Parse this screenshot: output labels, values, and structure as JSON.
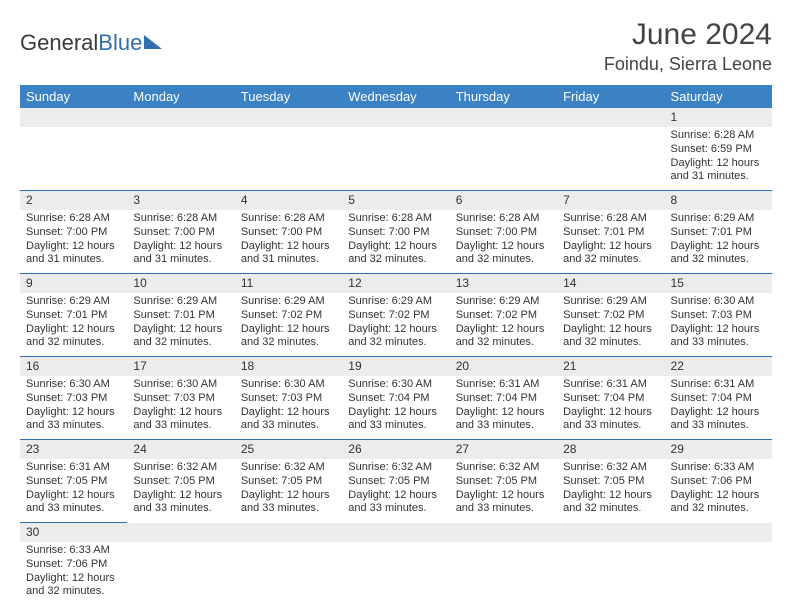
{
  "brand": {
    "part1": "General",
    "part2": "Blue"
  },
  "title": "June 2024",
  "location": "Foindu, Sierra Leone",
  "colors": {
    "header_bg": "#3b82c4",
    "header_text": "#ffffff",
    "daynum_bg": "#ececec",
    "cell_border": "#2f6fb0",
    "brand_blue": "#2f6fb0"
  },
  "weekdays": [
    "Sunday",
    "Monday",
    "Tuesday",
    "Wednesday",
    "Thursday",
    "Friday",
    "Saturday"
  ],
  "weeks": [
    [
      null,
      null,
      null,
      null,
      null,
      null,
      {
        "n": "1",
        "sr": "Sunrise: 6:28 AM",
        "ss": "Sunset: 6:59 PM",
        "d1": "Daylight: 12 hours",
        "d2": "and 31 minutes."
      }
    ],
    [
      {
        "n": "2",
        "sr": "Sunrise: 6:28 AM",
        "ss": "Sunset: 7:00 PM",
        "d1": "Daylight: 12 hours",
        "d2": "and 31 minutes."
      },
      {
        "n": "3",
        "sr": "Sunrise: 6:28 AM",
        "ss": "Sunset: 7:00 PM",
        "d1": "Daylight: 12 hours",
        "d2": "and 31 minutes."
      },
      {
        "n": "4",
        "sr": "Sunrise: 6:28 AM",
        "ss": "Sunset: 7:00 PM",
        "d1": "Daylight: 12 hours",
        "d2": "and 31 minutes."
      },
      {
        "n": "5",
        "sr": "Sunrise: 6:28 AM",
        "ss": "Sunset: 7:00 PM",
        "d1": "Daylight: 12 hours",
        "d2": "and 32 minutes."
      },
      {
        "n": "6",
        "sr": "Sunrise: 6:28 AM",
        "ss": "Sunset: 7:00 PM",
        "d1": "Daylight: 12 hours",
        "d2": "and 32 minutes."
      },
      {
        "n": "7",
        "sr": "Sunrise: 6:28 AM",
        "ss": "Sunset: 7:01 PM",
        "d1": "Daylight: 12 hours",
        "d2": "and 32 minutes."
      },
      {
        "n": "8",
        "sr": "Sunrise: 6:29 AM",
        "ss": "Sunset: 7:01 PM",
        "d1": "Daylight: 12 hours",
        "d2": "and 32 minutes."
      }
    ],
    [
      {
        "n": "9",
        "sr": "Sunrise: 6:29 AM",
        "ss": "Sunset: 7:01 PM",
        "d1": "Daylight: 12 hours",
        "d2": "and 32 minutes."
      },
      {
        "n": "10",
        "sr": "Sunrise: 6:29 AM",
        "ss": "Sunset: 7:01 PM",
        "d1": "Daylight: 12 hours",
        "d2": "and 32 minutes."
      },
      {
        "n": "11",
        "sr": "Sunrise: 6:29 AM",
        "ss": "Sunset: 7:02 PM",
        "d1": "Daylight: 12 hours",
        "d2": "and 32 minutes."
      },
      {
        "n": "12",
        "sr": "Sunrise: 6:29 AM",
        "ss": "Sunset: 7:02 PM",
        "d1": "Daylight: 12 hours",
        "d2": "and 32 minutes."
      },
      {
        "n": "13",
        "sr": "Sunrise: 6:29 AM",
        "ss": "Sunset: 7:02 PM",
        "d1": "Daylight: 12 hours",
        "d2": "and 32 minutes."
      },
      {
        "n": "14",
        "sr": "Sunrise: 6:29 AM",
        "ss": "Sunset: 7:02 PM",
        "d1": "Daylight: 12 hours",
        "d2": "and 32 minutes."
      },
      {
        "n": "15",
        "sr": "Sunrise: 6:30 AM",
        "ss": "Sunset: 7:03 PM",
        "d1": "Daylight: 12 hours",
        "d2": "and 33 minutes."
      }
    ],
    [
      {
        "n": "16",
        "sr": "Sunrise: 6:30 AM",
        "ss": "Sunset: 7:03 PM",
        "d1": "Daylight: 12 hours",
        "d2": "and 33 minutes."
      },
      {
        "n": "17",
        "sr": "Sunrise: 6:30 AM",
        "ss": "Sunset: 7:03 PM",
        "d1": "Daylight: 12 hours",
        "d2": "and 33 minutes."
      },
      {
        "n": "18",
        "sr": "Sunrise: 6:30 AM",
        "ss": "Sunset: 7:03 PM",
        "d1": "Daylight: 12 hours",
        "d2": "and 33 minutes."
      },
      {
        "n": "19",
        "sr": "Sunrise: 6:30 AM",
        "ss": "Sunset: 7:04 PM",
        "d1": "Daylight: 12 hours",
        "d2": "and 33 minutes."
      },
      {
        "n": "20",
        "sr": "Sunrise: 6:31 AM",
        "ss": "Sunset: 7:04 PM",
        "d1": "Daylight: 12 hours",
        "d2": "and 33 minutes."
      },
      {
        "n": "21",
        "sr": "Sunrise: 6:31 AM",
        "ss": "Sunset: 7:04 PM",
        "d1": "Daylight: 12 hours",
        "d2": "and 33 minutes."
      },
      {
        "n": "22",
        "sr": "Sunrise: 6:31 AM",
        "ss": "Sunset: 7:04 PM",
        "d1": "Daylight: 12 hours",
        "d2": "and 33 minutes."
      }
    ],
    [
      {
        "n": "23",
        "sr": "Sunrise: 6:31 AM",
        "ss": "Sunset: 7:05 PM",
        "d1": "Daylight: 12 hours",
        "d2": "and 33 minutes."
      },
      {
        "n": "24",
        "sr": "Sunrise: 6:32 AM",
        "ss": "Sunset: 7:05 PM",
        "d1": "Daylight: 12 hours",
        "d2": "and 33 minutes."
      },
      {
        "n": "25",
        "sr": "Sunrise: 6:32 AM",
        "ss": "Sunset: 7:05 PM",
        "d1": "Daylight: 12 hours",
        "d2": "and 33 minutes."
      },
      {
        "n": "26",
        "sr": "Sunrise: 6:32 AM",
        "ss": "Sunset: 7:05 PM",
        "d1": "Daylight: 12 hours",
        "d2": "and 33 minutes."
      },
      {
        "n": "27",
        "sr": "Sunrise: 6:32 AM",
        "ss": "Sunset: 7:05 PM",
        "d1": "Daylight: 12 hours",
        "d2": "and 33 minutes."
      },
      {
        "n": "28",
        "sr": "Sunrise: 6:32 AM",
        "ss": "Sunset: 7:05 PM",
        "d1": "Daylight: 12 hours",
        "d2": "and 32 minutes."
      },
      {
        "n": "29",
        "sr": "Sunrise: 6:33 AM",
        "ss": "Sunset: 7:06 PM",
        "d1": "Daylight: 12 hours",
        "d2": "and 32 minutes."
      }
    ],
    [
      {
        "n": "30",
        "sr": "Sunrise: 6:33 AM",
        "ss": "Sunset: 7:06 PM",
        "d1": "Daylight: 12 hours",
        "d2": "and 32 minutes."
      },
      null,
      null,
      null,
      null,
      null,
      null
    ]
  ]
}
